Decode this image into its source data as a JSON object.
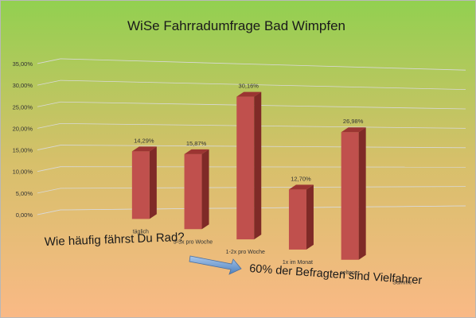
{
  "chart_data": {
    "type": "bar",
    "title": "WiSe Fahrradumfrage Bad Wimpfen",
    "categories": [
      "täglich",
      "3-5x pro Woche",
      "1-2x pro Woche",
      "1x im Monat",
      "seltener",
      "Summe"
    ],
    "values": [
      14.29,
      15.87,
      30.16,
      12.7,
      26.98,
      null
    ],
    "data_labels": [
      "14,29%",
      "15,87%",
      "30,16%",
      "12,70%",
      "26,98%",
      ""
    ],
    "y_ticks": [
      "0,00%",
      "5,00%",
      "10,00%",
      "15,00%",
      "20,00%",
      "25,00%",
      "30,00%",
      "35,00%"
    ],
    "ylim": [
      0,
      35
    ],
    "grid": true,
    "legend": "none",
    "bar_color": "#c0504d",
    "annotations": {
      "question": "Wie häufig fährst Du Rad?",
      "conclusion": "60% der Befragten sind Vielfahrer"
    }
  }
}
